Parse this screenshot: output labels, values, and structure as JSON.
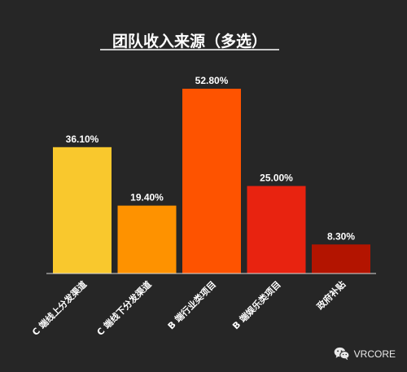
{
  "chart_data": {
    "type": "bar",
    "title": "团队收入来源（多选）",
    "categories": [
      "C 端线上分发渠道",
      "C 端线下分发渠道",
      "B 端行业类项目",
      "B 端娱乐类项目",
      "政府补贴"
    ],
    "values": [
      36.1,
      19.4,
      52.8,
      25.0,
      8.3
    ],
    "value_labels": [
      "36.10%",
      "19.40%",
      "52.80%",
      "25.00%",
      "8.30%"
    ],
    "colors": [
      "#f9c82d",
      "#fe9200",
      "#fe5300",
      "#e82310",
      "#b31400"
    ],
    "ylim": [
      0,
      52.8
    ],
    "grid": false,
    "legend": "none"
  },
  "watermark": {
    "text": "VRCORE",
    "icon": "wechat-icon"
  }
}
